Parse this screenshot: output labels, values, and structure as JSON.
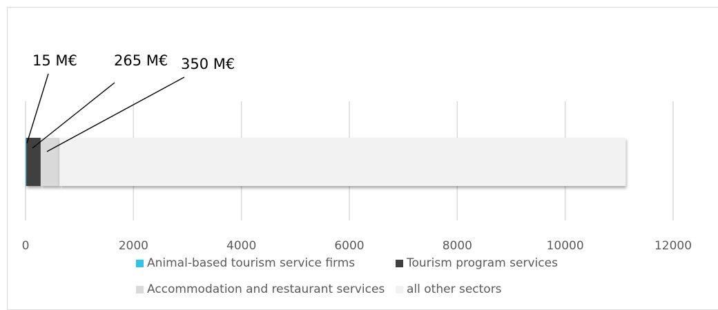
{
  "chart_data": {
    "type": "bar",
    "orientation": "horizontal",
    "stacked": true,
    "categories": [
      ""
    ],
    "series": [
      {
        "name": "Animal-based tourism service firms",
        "values": [
          15
        ],
        "color": "#2ec5e6"
      },
      {
        "name": "Tourism program services",
        "values": [
          265
        ],
        "color": "#404040"
      },
      {
        "name": "Accommodation and restaurant services",
        "values": [
          350
        ],
        "color": "#d9d9d9"
      },
      {
        "name": "all other sectors",
        "values": [
          10490
        ],
        "color": "#f2f2f2"
      }
    ],
    "xlim": [
      0,
      12000
    ],
    "xticks": [
      "0",
      "2000",
      "4000",
      "6000",
      "8000",
      "10000",
      "12000"
    ],
    "grid": true,
    "legend_position": "bottom",
    "annotations": [
      "15 M€",
      "265 M€",
      "350 M€"
    ]
  }
}
